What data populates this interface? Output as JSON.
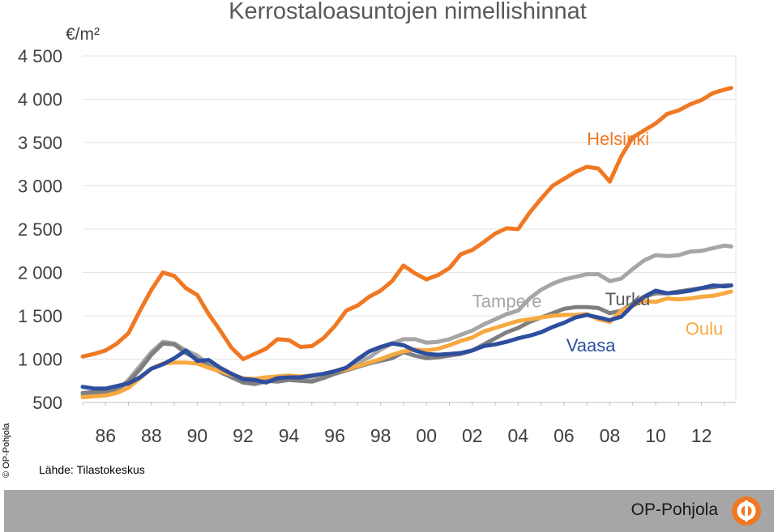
{
  "chart_data": {
    "type": "line",
    "title": "Kerrostaloasuntojen nimellishinnat",
    "unit_label": "€/m²",
    "ylim": [
      500,
      4500
    ],
    "yticks": [
      "4 500",
      "4 000",
      "3 500",
      "3 000",
      "2 500",
      "2 000",
      "1 500",
      "1 000",
      "500"
    ],
    "ytick_values": [
      4500,
      4000,
      3500,
      3000,
      2500,
      2000,
      1500,
      1000,
      500
    ],
    "xlim": [
      1985,
      2013.5
    ],
    "xticks": [
      "86",
      "88",
      "90",
      "92",
      "94",
      "96",
      "98",
      "00",
      "02",
      "04",
      "06",
      "08",
      "10",
      "12"
    ],
    "xtick_values": [
      1986,
      1988,
      1990,
      1992,
      1994,
      1996,
      1998,
      2000,
      2002,
      2004,
      2006,
      2008,
      2010,
      2012
    ],
    "grid": true,
    "series": [
      {
        "name": "Helsinki",
        "color": "#f07822",
        "points": [
          [
            1985.0,
            1030
          ],
          [
            1985.5,
            1060
          ],
          [
            1986.0,
            1100
          ],
          [
            1986.5,
            1180
          ],
          [
            1987.0,
            1300
          ],
          [
            1987.5,
            1560
          ],
          [
            1988.0,
            1800
          ],
          [
            1988.5,
            2000
          ],
          [
            1989.0,
            1960
          ],
          [
            1989.5,
            1820
          ],
          [
            1990.0,
            1740
          ],
          [
            1990.5,
            1520
          ],
          [
            1991.0,
            1330
          ],
          [
            1991.5,
            1130
          ],
          [
            1992.0,
            1000
          ],
          [
            1992.5,
            1060
          ],
          [
            1993.0,
            1120
          ],
          [
            1993.5,
            1230
          ],
          [
            1994.0,
            1220
          ],
          [
            1994.5,
            1140
          ],
          [
            1995.0,
            1150
          ],
          [
            1995.5,
            1240
          ],
          [
            1996.0,
            1380
          ],
          [
            1996.5,
            1560
          ],
          [
            1997.0,
            1620
          ],
          [
            1997.5,
            1720
          ],
          [
            1998.0,
            1790
          ],
          [
            1998.5,
            1900
          ],
          [
            1999.0,
            2080
          ],
          [
            1999.5,
            1990
          ],
          [
            2000.0,
            1920
          ],
          [
            2000.5,
            1970
          ],
          [
            2001.0,
            2050
          ],
          [
            2001.5,
            2210
          ],
          [
            2002.0,
            2260
          ],
          [
            2002.5,
            2350
          ],
          [
            2003.0,
            2450
          ],
          [
            2003.5,
            2510
          ],
          [
            2004.0,
            2500
          ],
          [
            2004.5,
            2690
          ],
          [
            2005.0,
            2850
          ],
          [
            2005.5,
            3000
          ],
          [
            2006.0,
            3080
          ],
          [
            2006.5,
            3160
          ],
          [
            2007.0,
            3220
          ],
          [
            2007.5,
            3200
          ],
          [
            2008.0,
            3050
          ],
          [
            2008.5,
            3340
          ],
          [
            2009.0,
            3560
          ],
          [
            2009.5,
            3640
          ],
          [
            2010.0,
            3720
          ],
          [
            2010.5,
            3830
          ],
          [
            2011.0,
            3870
          ],
          [
            2011.5,
            3940
          ],
          [
            2012.0,
            3990
          ],
          [
            2012.5,
            4070
          ],
          [
            2013.0,
            4110
          ],
          [
            2013.3,
            4130
          ]
        ]
      },
      {
        "name": "Tampere",
        "color": "#a6a6a6",
        "points": [
          [
            1985.0,
            590
          ],
          [
            1985.5,
            600
          ],
          [
            1986.0,
            600
          ],
          [
            1986.5,
            640
          ],
          [
            1987.0,
            760
          ],
          [
            1987.5,
            920
          ],
          [
            1988.0,
            1080
          ],
          [
            1988.5,
            1200
          ],
          [
            1989.0,
            1180
          ],
          [
            1989.5,
            1100
          ],
          [
            1990.0,
            1040
          ],
          [
            1990.5,
            940
          ],
          [
            1991.0,
            860
          ],
          [
            1991.5,
            790
          ],
          [
            1992.0,
            730
          ],
          [
            1992.5,
            710
          ],
          [
            1993.0,
            740
          ],
          [
            1993.5,
            760
          ],
          [
            1994.0,
            770
          ],
          [
            1994.5,
            780
          ],
          [
            1995.0,
            790
          ],
          [
            1995.5,
            820
          ],
          [
            1996.0,
            860
          ],
          [
            1996.5,
            900
          ],
          [
            1997.0,
            960
          ],
          [
            1997.5,
            1020
          ],
          [
            1998.0,
            1110
          ],
          [
            1998.5,
            1180
          ],
          [
            1999.0,
            1230
          ],
          [
            1999.5,
            1230
          ],
          [
            2000.0,
            1190
          ],
          [
            2000.5,
            1200
          ],
          [
            2001.0,
            1230
          ],
          [
            2001.5,
            1280
          ],
          [
            2002.0,
            1330
          ],
          [
            2002.5,
            1400
          ],
          [
            2003.0,
            1460
          ],
          [
            2003.5,
            1520
          ],
          [
            2004.0,
            1560
          ],
          [
            2004.5,
            1700
          ],
          [
            2005.0,
            1800
          ],
          [
            2005.5,
            1870
          ],
          [
            2006.0,
            1920
          ],
          [
            2006.5,
            1950
          ],
          [
            2007.0,
            1980
          ],
          [
            2007.5,
            1980
          ],
          [
            2008.0,
            1900
          ],
          [
            2008.5,
            1930
          ],
          [
            2009.0,
            2040
          ],
          [
            2009.5,
            2140
          ],
          [
            2010.0,
            2200
          ],
          [
            2010.5,
            2190
          ],
          [
            2011.0,
            2200
          ],
          [
            2011.5,
            2240
          ],
          [
            2012.0,
            2250
          ],
          [
            2012.5,
            2280
          ],
          [
            2013.0,
            2310
          ],
          [
            2013.3,
            2300
          ]
        ]
      },
      {
        "name": "Turku",
        "color": "#7f7f7f",
        "points": [
          [
            1985.0,
            610
          ],
          [
            1985.5,
            620
          ],
          [
            1986.0,
            620
          ],
          [
            1986.5,
            650
          ],
          [
            1987.0,
            740
          ],
          [
            1987.5,
            880
          ],
          [
            1988.0,
            1050
          ],
          [
            1988.5,
            1180
          ],
          [
            1989.0,
            1170
          ],
          [
            1989.5,
            1070
          ],
          [
            1990.0,
            1000
          ],
          [
            1990.5,
            920
          ],
          [
            1991.0,
            850
          ],
          [
            1991.5,
            790
          ],
          [
            1992.0,
            730
          ],
          [
            1992.5,
            720
          ],
          [
            1993.0,
            750
          ],
          [
            1993.5,
            740
          ],
          [
            1994.0,
            760
          ],
          [
            1994.5,
            750
          ],
          [
            1995.0,
            740
          ],
          [
            1995.5,
            780
          ],
          [
            1996.0,
            830
          ],
          [
            1996.5,
            870
          ],
          [
            1997.0,
            910
          ],
          [
            1997.5,
            950
          ],
          [
            1998.0,
            980
          ],
          [
            1998.5,
            1010
          ],
          [
            1999.0,
            1080
          ],
          [
            1999.5,
            1040
          ],
          [
            2000.0,
            1010
          ],
          [
            2000.5,
            1020
          ],
          [
            2001.0,
            1040
          ],
          [
            2001.5,
            1060
          ],
          [
            2002.0,
            1100
          ],
          [
            2002.5,
            1170
          ],
          [
            2003.0,
            1240
          ],
          [
            2003.5,
            1310
          ],
          [
            2004.0,
            1360
          ],
          [
            2004.5,
            1430
          ],
          [
            2005.0,
            1480
          ],
          [
            2005.5,
            1530
          ],
          [
            2006.0,
            1580
          ],
          [
            2006.5,
            1600
          ],
          [
            2007.0,
            1600
          ],
          [
            2007.5,
            1590
          ],
          [
            2008.0,
            1530
          ],
          [
            2008.5,
            1560
          ],
          [
            2009.0,
            1640
          ],
          [
            2009.5,
            1720
          ],
          [
            2010.0,
            1760
          ],
          [
            2010.5,
            1760
          ],
          [
            2011.0,
            1780
          ],
          [
            2011.5,
            1800
          ],
          [
            2012.0,
            1820
          ],
          [
            2012.5,
            1830
          ],
          [
            2013.0,
            1850
          ],
          [
            2013.3,
            1850
          ]
        ]
      },
      {
        "name": "Oulu",
        "color": "#f7a941",
        "points": [
          [
            1985.0,
            560
          ],
          [
            1985.5,
            570
          ],
          [
            1986.0,
            580
          ],
          [
            1986.5,
            610
          ],
          [
            1987.0,
            670
          ],
          [
            1987.5,
            780
          ],
          [
            1988.0,
            890
          ],
          [
            1988.5,
            950
          ],
          [
            1989.0,
            960
          ],
          [
            1989.5,
            960
          ],
          [
            1990.0,
            950
          ],
          [
            1990.5,
            900
          ],
          [
            1991.0,
            860
          ],
          [
            1991.5,
            820
          ],
          [
            1992.0,
            780
          ],
          [
            1992.5,
            770
          ],
          [
            1993.0,
            790
          ],
          [
            1993.5,
            800
          ],
          [
            1994.0,
            810
          ],
          [
            1994.5,
            800
          ],
          [
            1995.0,
            810
          ],
          [
            1995.5,
            830
          ],
          [
            1996.0,
            860
          ],
          [
            1996.5,
            880
          ],
          [
            1997.0,
            920
          ],
          [
            1997.5,
            960
          ],
          [
            1998.0,
            1000
          ],
          [
            1998.5,
            1050
          ],
          [
            1999.0,
            1090
          ],
          [
            1999.5,
            1110
          ],
          [
            2000.0,
            1100
          ],
          [
            2000.5,
            1120
          ],
          [
            2001.0,
            1160
          ],
          [
            2001.5,
            1210
          ],
          [
            2002.0,
            1250
          ],
          [
            2002.5,
            1320
          ],
          [
            2003.0,
            1360
          ],
          [
            2003.5,
            1400
          ],
          [
            2004.0,
            1440
          ],
          [
            2004.5,
            1460
          ],
          [
            2005.0,
            1480
          ],
          [
            2005.5,
            1500
          ],
          [
            2006.0,
            1510
          ],
          [
            2006.5,
            1510
          ],
          [
            2007.0,
            1520
          ],
          [
            2007.5,
            1460
          ],
          [
            2008.0,
            1430
          ],
          [
            2008.5,
            1560
          ],
          [
            2009.0,
            1620
          ],
          [
            2009.5,
            1670
          ],
          [
            2010.0,
            1660
          ],
          [
            2010.5,
            1700
          ],
          [
            2011.0,
            1690
          ],
          [
            2011.5,
            1700
          ],
          [
            2012.0,
            1720
          ],
          [
            2012.5,
            1730
          ],
          [
            2013.0,
            1760
          ],
          [
            2013.3,
            1780
          ]
        ]
      },
      {
        "name": "Vaasa",
        "color": "#2e4e9e",
        "points": [
          [
            1985.0,
            680
          ],
          [
            1985.5,
            660
          ],
          [
            1986.0,
            660
          ],
          [
            1986.5,
            690
          ],
          [
            1987.0,
            720
          ],
          [
            1987.5,
            790
          ],
          [
            1988.0,
            890
          ],
          [
            1988.5,
            940
          ],
          [
            1989.0,
            1010
          ],
          [
            1989.5,
            1100
          ],
          [
            1990.0,
            980
          ],
          [
            1990.5,
            990
          ],
          [
            1991.0,
            900
          ],
          [
            1991.5,
            830
          ],
          [
            1992.0,
            770
          ],
          [
            1992.5,
            760
          ],
          [
            1993.0,
            730
          ],
          [
            1993.5,
            780
          ],
          [
            1994.0,
            790
          ],
          [
            1994.5,
            790
          ],
          [
            1995.0,
            810
          ],
          [
            1995.5,
            830
          ],
          [
            1996.0,
            860
          ],
          [
            1996.5,
            900
          ],
          [
            1997.0,
            1000
          ],
          [
            1997.5,
            1090
          ],
          [
            1998.0,
            1140
          ],
          [
            1998.5,
            1180
          ],
          [
            1999.0,
            1160
          ],
          [
            1999.5,
            1100
          ],
          [
            2000.0,
            1060
          ],
          [
            2000.5,
            1050
          ],
          [
            2001.0,
            1060
          ],
          [
            2001.5,
            1070
          ],
          [
            2002.0,
            1100
          ],
          [
            2002.5,
            1150
          ],
          [
            2003.0,
            1170
          ],
          [
            2003.5,
            1200
          ],
          [
            2004.0,
            1240
          ],
          [
            2004.5,
            1270
          ],
          [
            2005.0,
            1310
          ],
          [
            2005.5,
            1370
          ],
          [
            2006.0,
            1420
          ],
          [
            2006.5,
            1480
          ],
          [
            2007.0,
            1510
          ],
          [
            2007.5,
            1480
          ],
          [
            2008.0,
            1450
          ],
          [
            2008.5,
            1490
          ],
          [
            2009.0,
            1620
          ],
          [
            2009.5,
            1720
          ],
          [
            2010.0,
            1790
          ],
          [
            2010.5,
            1760
          ],
          [
            2011.0,
            1770
          ],
          [
            2011.5,
            1790
          ],
          [
            2012.0,
            1820
          ],
          [
            2012.5,
            1850
          ],
          [
            2013.0,
            1840
          ],
          [
            2013.3,
            1850
          ]
        ]
      }
    ],
    "series_labels": [
      {
        "text": "Helsinki",
        "color": "#f07822",
        "x": 2007.0,
        "y": 3470
      },
      {
        "text": "Tampere",
        "color": "#a6a6a6",
        "x": 2002.0,
        "y": 1600
      },
      {
        "text": "Turku",
        "color": "#595959",
        "x": 2007.8,
        "y": 1620
      },
      {
        "text": "Oulu",
        "color": "#f7a941",
        "x": 2011.3,
        "y": 1280
      },
      {
        "text": "Vaasa",
        "color": "#2e4e9e",
        "x": 2006.1,
        "y": 1090
      }
    ]
  },
  "source": "Lähde: Tilastokeskus",
  "copyright": "© OP-Pohjola",
  "brand": "OP-Pohjola"
}
